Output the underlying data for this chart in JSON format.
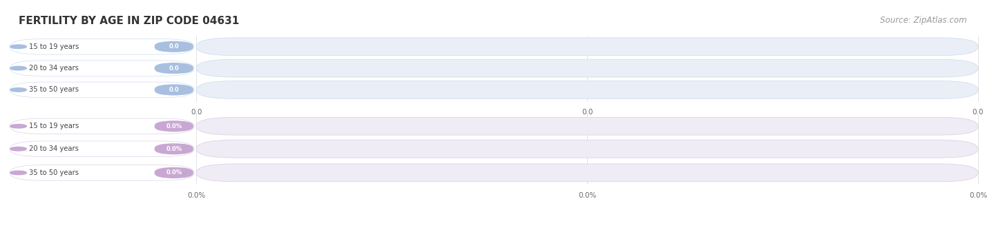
{
  "title": "FERTILITY BY AGE IN ZIP CODE 04631",
  "source": "Source: ZipAtlas.com",
  "group1": {
    "labels": [
      "15 to 19 years",
      "20 to 34 years",
      "35 to 50 years"
    ],
    "values": [
      0.0,
      0.0,
      0.0
    ],
    "value_labels": [
      "0.0",
      "0.0",
      "0.0"
    ],
    "bar_bg_color": "#eaeff7",
    "bar_border_color": "#d0ddf0",
    "pill_color": "#a8bfdf",
    "pill_text_color": "#ffffff",
    "label_color": "#444444",
    "axis_ticks": [
      "0.0",
      "0.0",
      "0.0"
    ]
  },
  "group2": {
    "labels": [
      "15 to 19 years",
      "20 to 34 years",
      "35 to 50 years"
    ],
    "values": [
      0.0,
      0.0,
      0.0
    ],
    "value_labels": [
      "0.0%",
      "0.0%",
      "0.0%"
    ],
    "bar_bg_color": "#f0ecf5",
    "bar_border_color": "#ddd0e8",
    "pill_color": "#c8a8d2",
    "pill_text_color": "#ffffff",
    "label_color": "#444444",
    "axis_ticks": [
      "0.0%",
      "0.0%",
      "0.0%"
    ]
  },
  "bg_color": "#ffffff",
  "title_color": "#333333",
  "title_fontsize": 11,
  "source_color": "#999999",
  "source_fontsize": 8.5
}
